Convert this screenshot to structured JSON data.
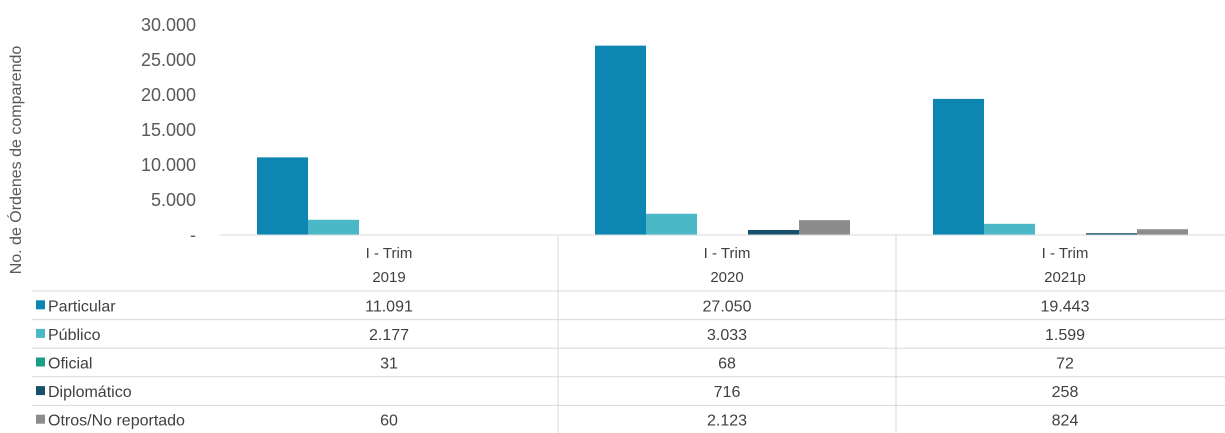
{
  "chart_data": {
    "type": "bar",
    "ylabel": "No. de Órdenes de comparendo",
    "ylim": [
      0,
      30000
    ],
    "yticks": [
      "-",
      "5.000",
      "10.000",
      "15.000",
      "20.000",
      "25.000",
      "30.000"
    ],
    "ytick_values": [
      0,
      5000,
      10000,
      15000,
      20000,
      25000,
      30000
    ],
    "categories": [
      {
        "line1": "I - Trim",
        "line2": "2019"
      },
      {
        "line1": "I - Trim",
        "line2": "2020"
      },
      {
        "line1": "I - Trim",
        "line2": "2021p"
      }
    ],
    "series": [
      {
        "name": "Particular",
        "color": "#0E86B2",
        "values": [
          11091,
          27050,
          19443
        ],
        "labels": [
          "11.091",
          "27.050",
          "19.443"
        ]
      },
      {
        "name": "Público",
        "color": "#4BB8C8",
        "values": [
          2177,
          3033,
          1599
        ],
        "labels": [
          "2.177",
          "3.033",
          "1.599"
        ]
      },
      {
        "name": "Oficial",
        "color": "#1A9E86",
        "values": [
          31,
          68,
          72
        ],
        "labels": [
          "31",
          "68",
          "72"
        ]
      },
      {
        "name": "Diplomático",
        "color": "#17506A",
        "values": [
          null,
          716,
          258
        ],
        "labels": [
          "",
          "716",
          "258"
        ]
      },
      {
        "name": "Otros/No reportado",
        "color": "#8C8C8C",
        "values": [
          60,
          2123,
          824
        ],
        "labels": [
          "60",
          "2.123",
          "824"
        ]
      }
    ],
    "legend": "table-rows"
  }
}
